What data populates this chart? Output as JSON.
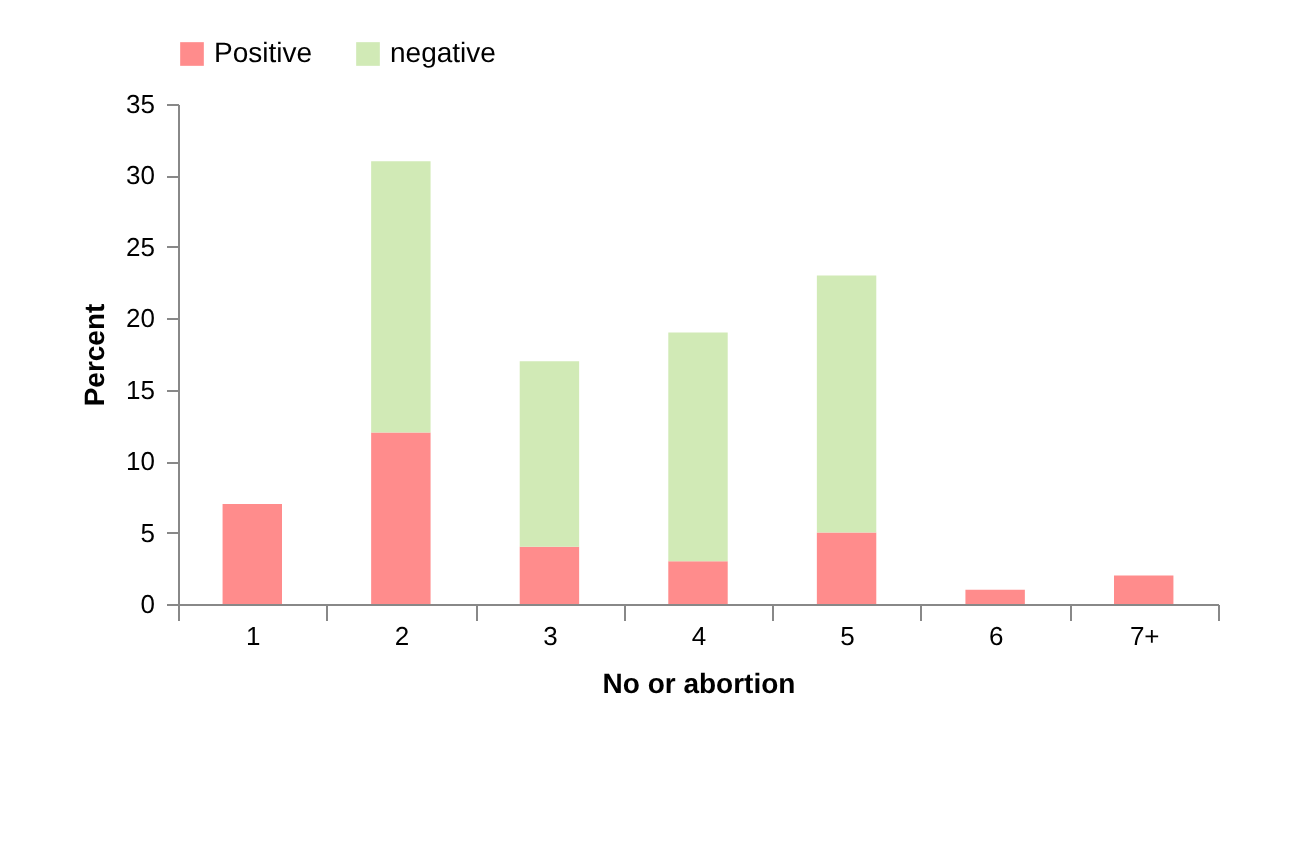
{
  "chart_data": {
    "type": "bar",
    "stacked": true,
    "xlabel": "No or abortion",
    "ylabel": "Percent",
    "categories": [
      "1",
      "2",
      "3",
      "4",
      "5",
      "6",
      "7+"
    ],
    "series": [
      {
        "name": "Positive",
        "color": "#ff8c8c",
        "values": [
          7,
          12,
          4,
          3,
          5,
          1,
          2
        ]
      },
      {
        "name": "negative",
        "color": "#d1eab6",
        "values": [
          0,
          19,
          13,
          16,
          18,
          0,
          0
        ]
      }
    ],
    "ylim": [
      0,
      35
    ],
    "yticks": [
      0,
      5,
      10,
      15,
      20,
      25,
      30,
      35
    ],
    "legend": "top",
    "grid": false
  }
}
